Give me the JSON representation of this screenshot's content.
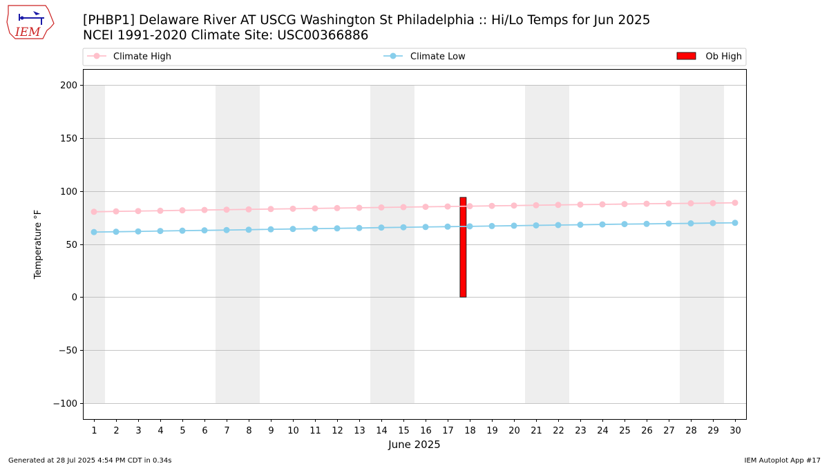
{
  "logo": {
    "text": "IEM"
  },
  "footer": {
    "generated": "Generated at 28 Jul 2025 4:54 PM CDT in 0.34s",
    "app": "IEM Autoplot App #17"
  },
  "colors": {
    "climate_high": "#ffc0cb",
    "climate_low": "#87ceeb",
    "ob_high": "#ff0000",
    "weekend_band": "#eeeeee",
    "grid": "#b0b0b0",
    "logo_red": "#cc2222",
    "logo_blue": "#1a1aa8"
  },
  "chart_data": {
    "type": "line",
    "title_line1": "[PHBP1] Delaware River  AT USCG Washington St Philadelphia :: Hi/Lo Temps for Jun 2025",
    "title_line2": "NCEI 1991-2020 Climate Site: USC00366886",
    "xlabel": "June 2025",
    "ylabel": "Temperature °F",
    "ylim": [
      -115,
      215
    ],
    "xlim": [
      0.5,
      30.5
    ],
    "yticks": [
      -100,
      -50,
      0,
      50,
      100,
      150,
      200
    ],
    "ytick_labels": [
      "−100",
      "−50",
      "0",
      "50",
      "100",
      "150",
      "200"
    ],
    "x": [
      1,
      2,
      3,
      4,
      5,
      6,
      7,
      8,
      9,
      10,
      11,
      12,
      13,
      14,
      15,
      16,
      17,
      18,
      19,
      20,
      21,
      22,
      23,
      24,
      25,
      26,
      27,
      28,
      29,
      30
    ],
    "xtick_labels": [
      "1",
      "2",
      "3",
      "4",
      "5",
      "6",
      "7",
      "8",
      "9",
      "10",
      "11",
      "12",
      "13",
      "14",
      "15",
      "16",
      "17",
      "18",
      "19",
      "20",
      "21",
      "22",
      "23",
      "24",
      "25",
      "26",
      "27",
      "28",
      "29",
      "30"
    ],
    "weekend_bands": [
      [
        0.5,
        1.5
      ],
      [
        6.5,
        8.5
      ],
      [
        13.5,
        15.5
      ],
      [
        20.5,
        22.5
      ],
      [
        27.5,
        29.5
      ]
    ],
    "weekend_band_range": [
      -100,
      200
    ],
    "grid": true,
    "legend": {
      "placement": "top",
      "entries": [
        "Climate High",
        "Climate Low",
        "Ob High"
      ]
    },
    "series": [
      {
        "name": "Climate High",
        "type": "line",
        "values": [
          80.4,
          80.8,
          81.1,
          81.4,
          81.8,
          82.1,
          82.4,
          82.7,
          83.0,
          83.3,
          83.6,
          83.9,
          84.2,
          84.5,
          84.8,
          85.1,
          85.4,
          85.7,
          86.0,
          86.3,
          86.6,
          86.9,
          87.2,
          87.4,
          87.7,
          88.0,
          88.2,
          88.4,
          88.6,
          88.9
        ]
      },
      {
        "name": "Climate Low",
        "type": "line",
        "values": [
          61.3,
          61.6,
          61.9,
          62.3,
          62.6,
          62.9,
          63.2,
          63.5,
          63.9,
          64.2,
          64.5,
          64.8,
          65.1,
          65.5,
          65.8,
          66.1,
          66.4,
          66.7,
          67.0,
          67.3,
          67.6,
          67.9,
          68.2,
          68.5,
          68.8,
          69.0,
          69.3,
          69.5,
          69.8,
          70.0
        ]
      },
      {
        "name": "Ob High",
        "type": "bar",
        "bars": [
          {
            "day": 17.7,
            "value": 94
          }
        ]
      }
    ]
  }
}
